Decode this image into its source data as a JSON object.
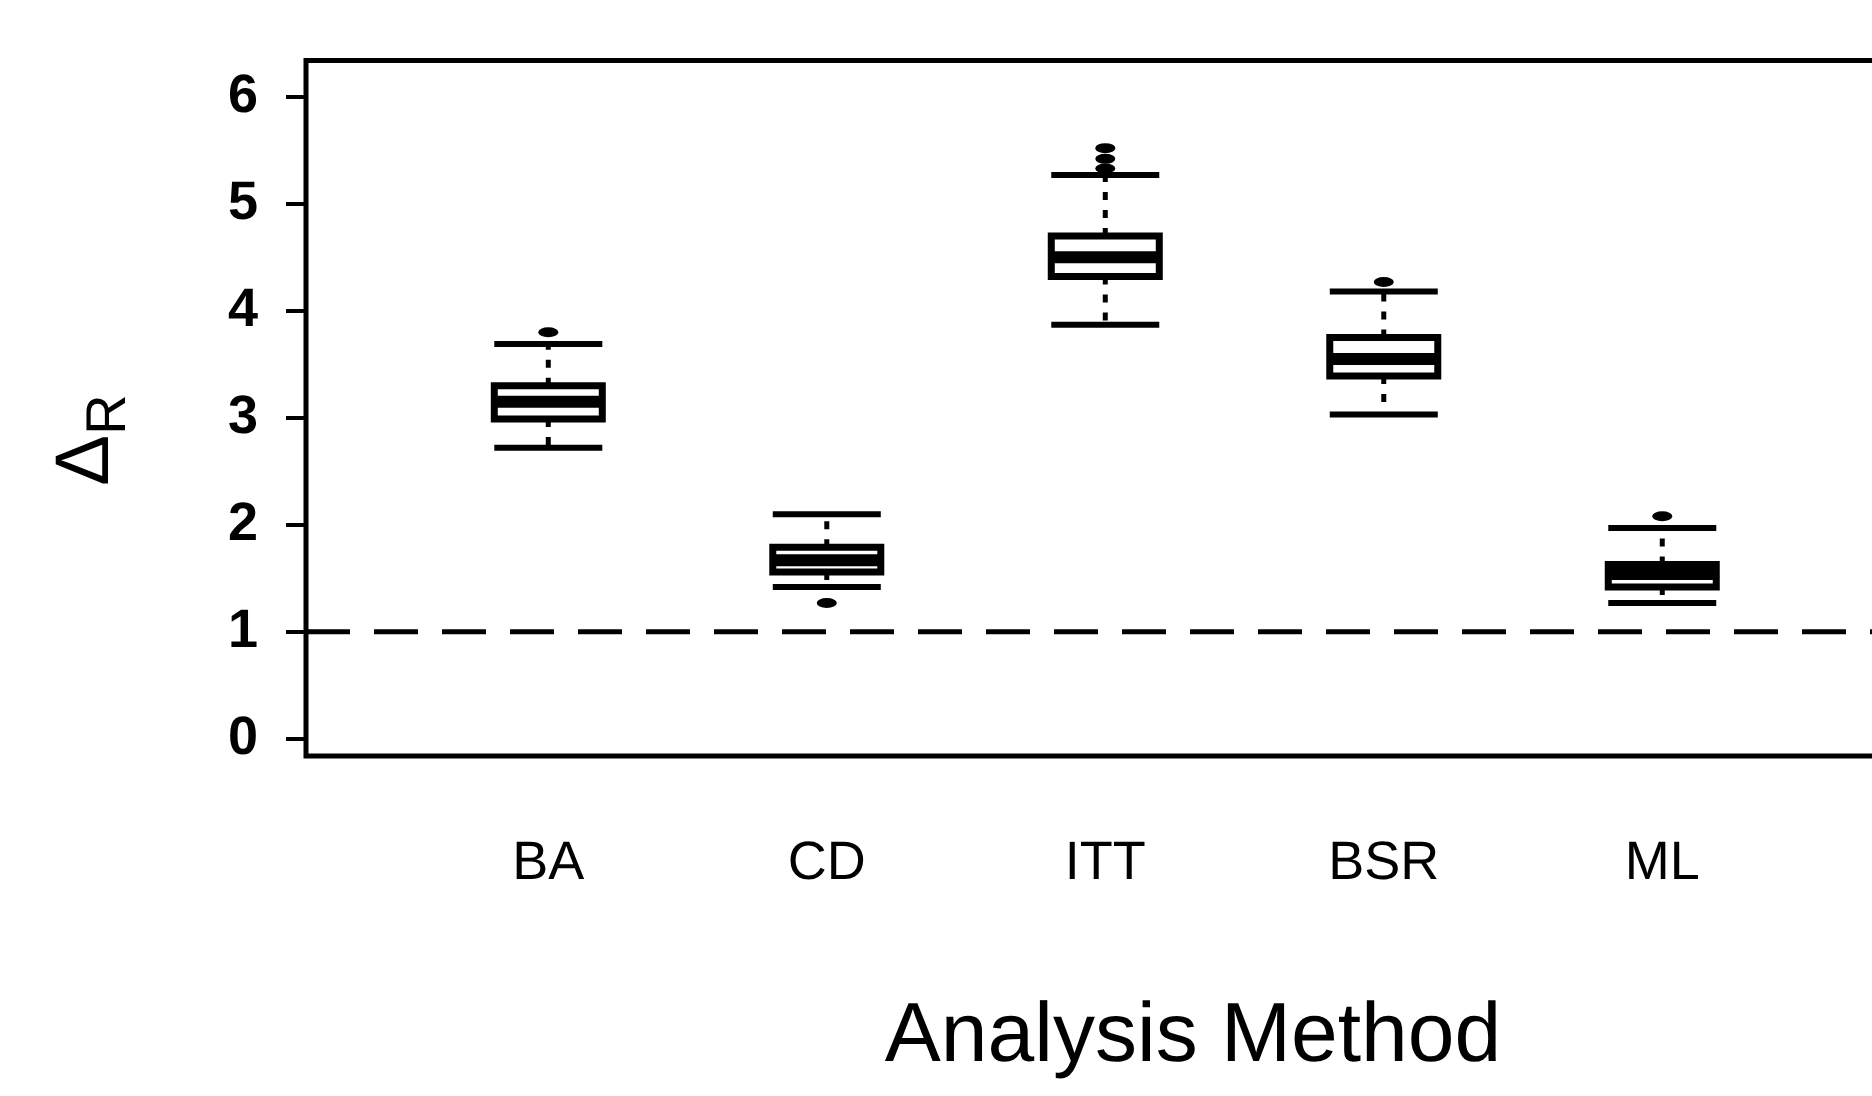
{
  "chart_data": {
    "type": "box",
    "xlabel": "Analysis Method",
    "ylabel": "Δ$_{R}$",
    "categories": [
      "BA",
      "CD",
      "ITT",
      "BSR",
      "ML"
    ],
    "boxes": [
      {
        "low": 2.72,
        "q1": 2.99,
        "median": 3.15,
        "q3": 3.3,
        "high": 3.69,
        "outliers": [
          3.8
        ]
      },
      {
        "low": 1.42,
        "q1": 1.56,
        "median": 1.67,
        "q3": 1.79,
        "high": 2.1,
        "outliers": [
          1.27
        ]
      },
      {
        "low": 3.87,
        "q1": 4.32,
        "median": 4.5,
        "q3": 4.7,
        "high": 5.27,
        "outliers": [
          5.33,
          5.42,
          5.52
        ]
      },
      {
        "low": 3.03,
        "q1": 3.39,
        "median": 3.55,
        "q3": 3.75,
        "high": 4.18,
        "outliers": [
          4.27
        ]
      },
      {
        "low": 1.27,
        "q1": 1.42,
        "median": 1.54,
        "q3": 1.63,
        "high": 1.97,
        "outliers": [
          2.08
        ]
      }
    ],
    "color": "#000000",
    "marker": "circle",
    "ylim": [
      -0.16,
      6.34
    ],
    "yticks": [
      0,
      1,
      2,
      3,
      4,
      5,
      6
    ],
    "grid": false,
    "legend": false,
    "ref_lines": [
      {
        "axis": "y",
        "value": 1,
        "line_style": "dashed",
        "color": "#000000"
      }
    ]
  }
}
